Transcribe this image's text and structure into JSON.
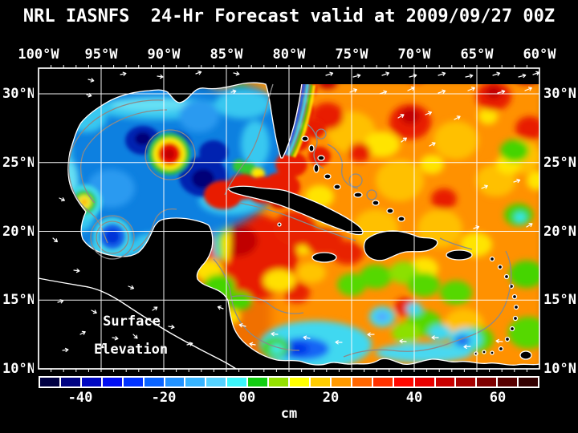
{
  "title": "NRL IASNFS  24-Hr Forecast valid at 2009/09/27 00Z",
  "axes": {
    "lon_labels": [
      "100°W",
      "95°W",
      "90°W",
      "85°W",
      "80°W",
      "75°W",
      "70°W",
      "65°W",
      "60°W"
    ],
    "lat_labels": [
      "30°N",
      "25°N",
      "20°N",
      "15°N",
      "10°N"
    ]
  },
  "map": {
    "overlay_label": {
      "line1": "Surface",
      "line2": "Elevation"
    }
  },
  "colorbar": {
    "units_label": "cm",
    "value_min_cm": -50,
    "value_max_cm": 70,
    "cell_step_cm": 5,
    "ticks": [
      {
        "label": "-40",
        "boundary_index": 2
      },
      {
        "label": "-20",
        "boundary_index": 6
      },
      {
        "label": "00",
        "boundary_index": 10
      },
      {
        "label": "20",
        "boundary_index": 14
      },
      {
        "label": "40",
        "boundary_index": 18
      },
      {
        "label": "60",
        "boundary_index": 22
      }
    ],
    "cell_colors": [
      "#000042",
      "#000382",
      "#0008c2",
      "#000ef2",
      "#0032ff",
      "#0a64ff",
      "#2292ff",
      "#38b4ff",
      "#55d2ff",
      "#3cf6fb",
      "#12cd12",
      "#94e100",
      "#ffff00",
      "#ffcc00",
      "#ff9900",
      "#ff6600",
      "#ff3300",
      "#ff0800",
      "#ea0000",
      "#c90000",
      "#a60000",
      "#7e0000",
      "#570000",
      "#320000"
    ]
  }
}
